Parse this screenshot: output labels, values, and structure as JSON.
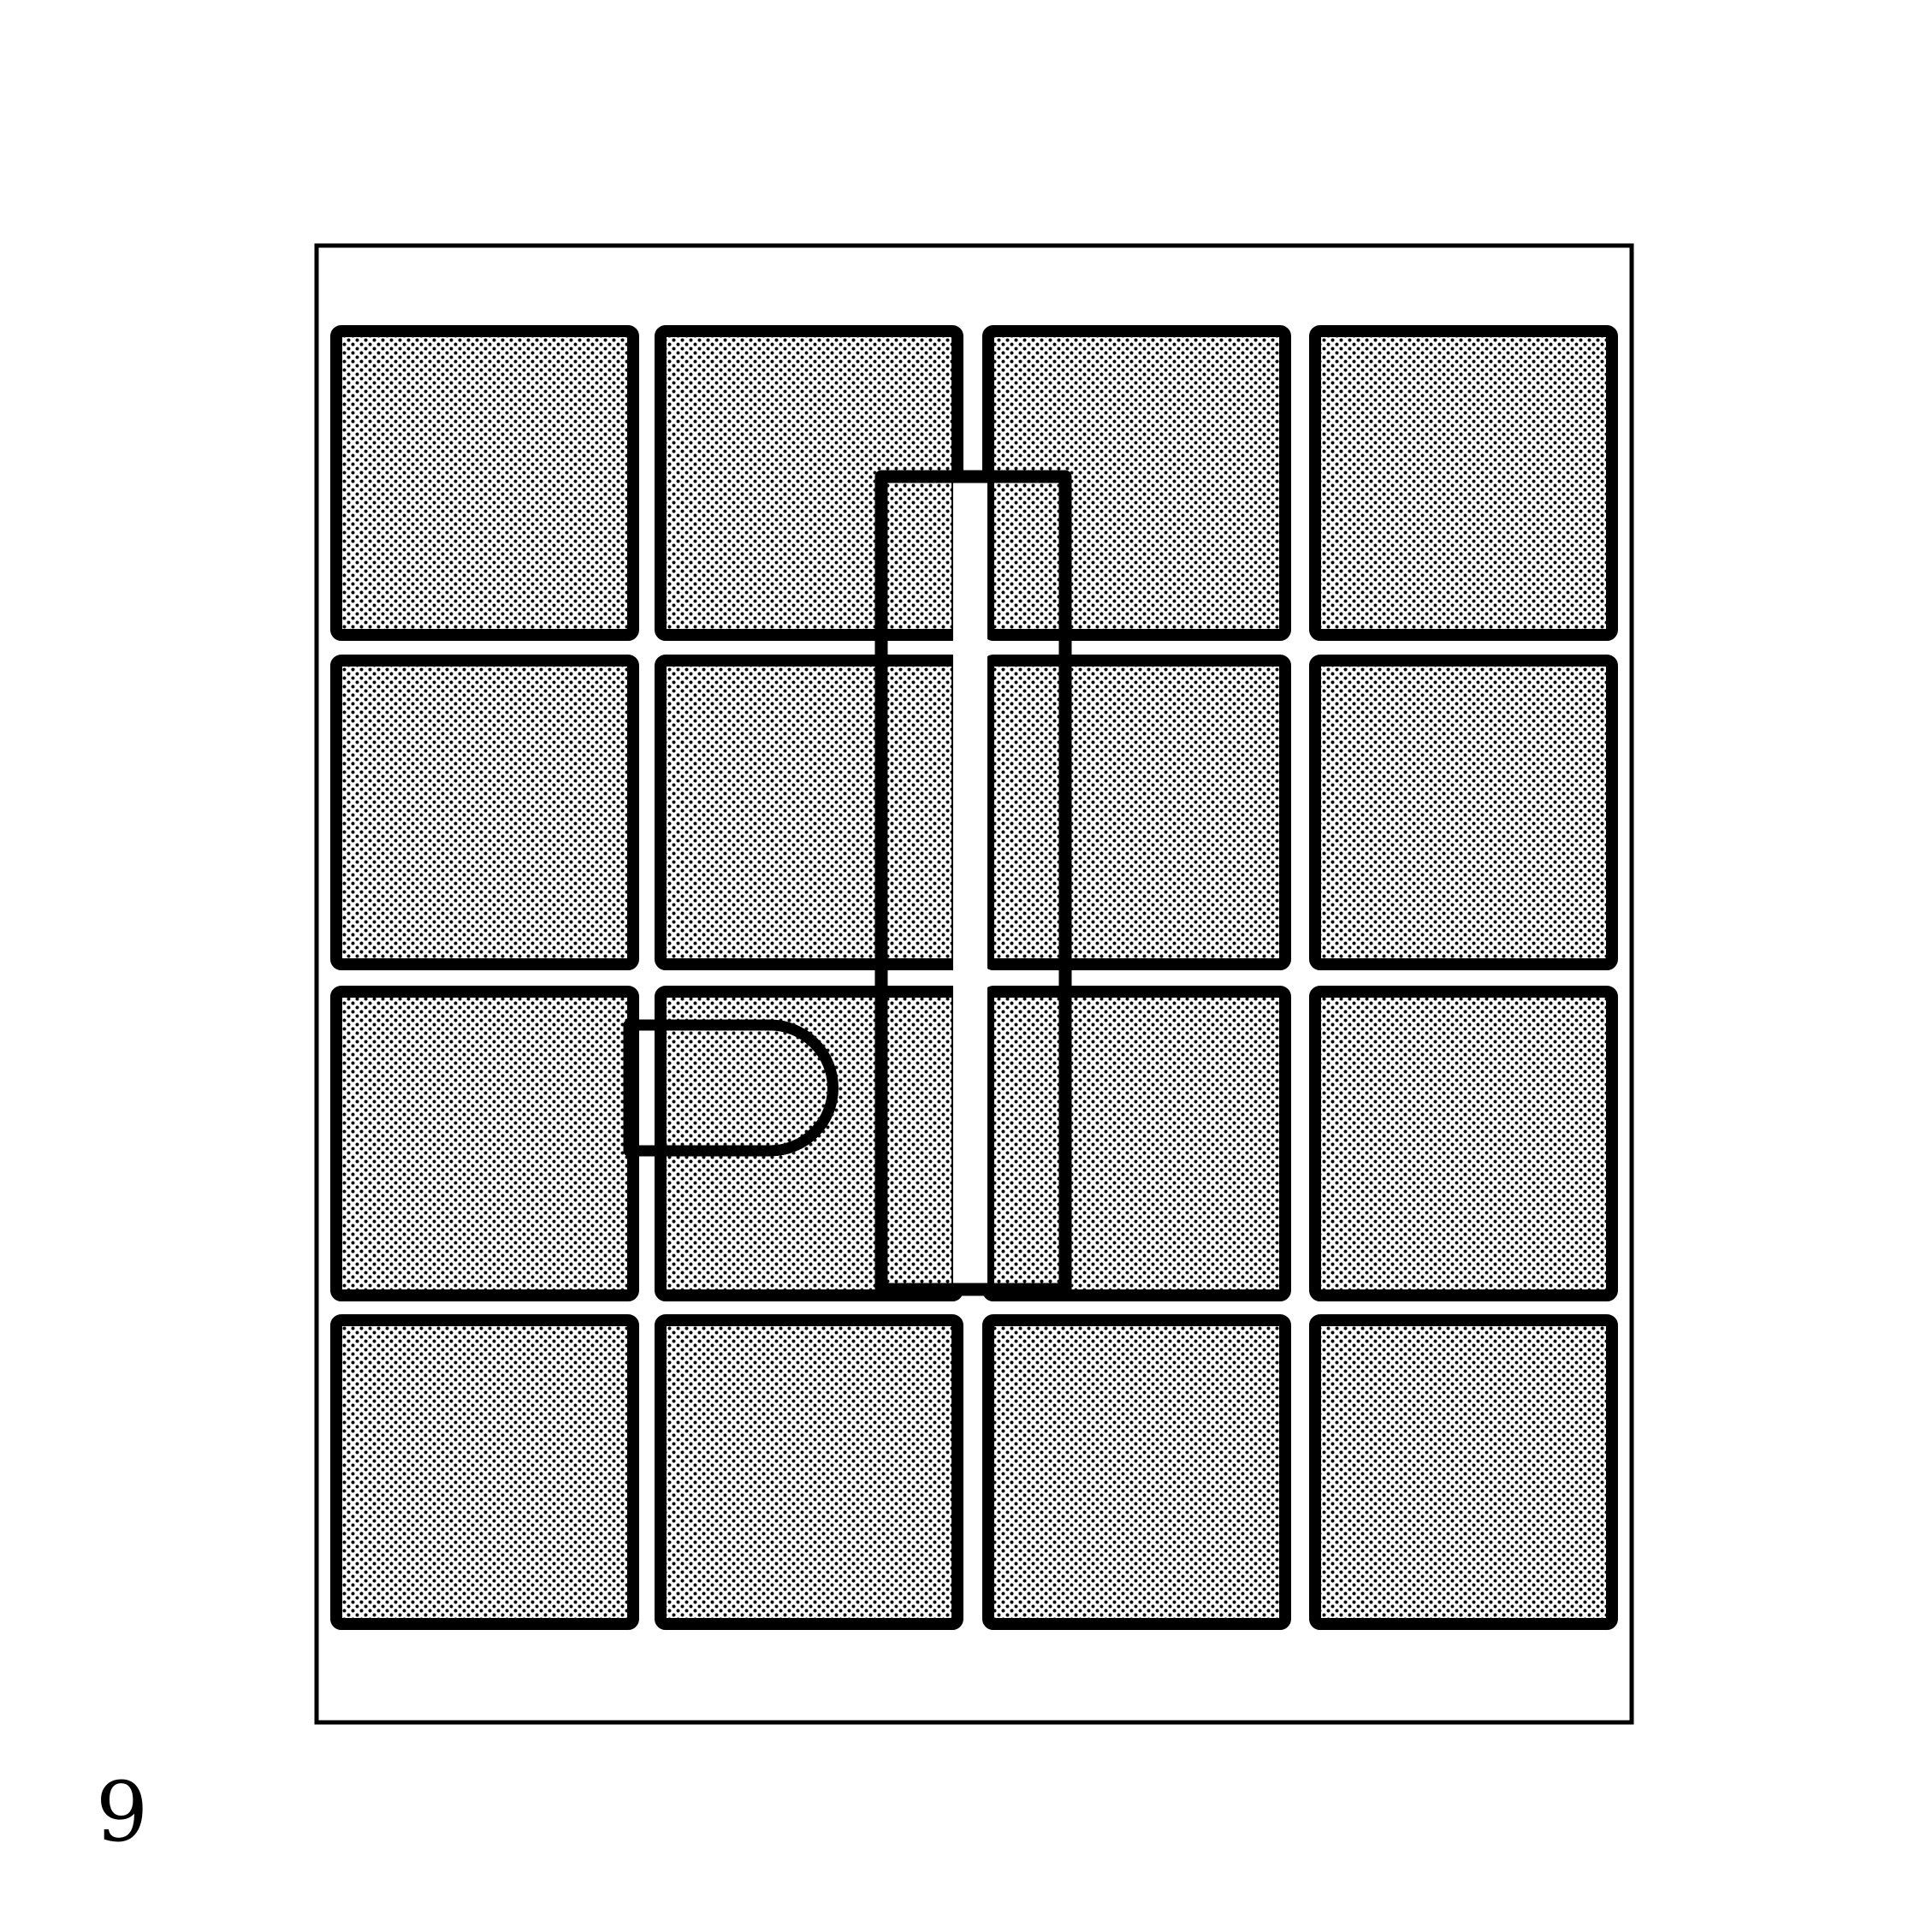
{
  "figure": {
    "number_label": "9",
    "grid_rows": 4,
    "grid_cols": 4,
    "cell_fill": "dotted-grey",
    "colors": {
      "stroke": "#000000",
      "background": "#ffffff",
      "dot": "#000000"
    },
    "overlays": [
      {
        "type": "tall-rectangle-outline",
        "description_key": "vertical-bar"
      },
      {
        "type": "d-shape-outline",
        "description_key": "rounded-tab"
      }
    ]
  }
}
